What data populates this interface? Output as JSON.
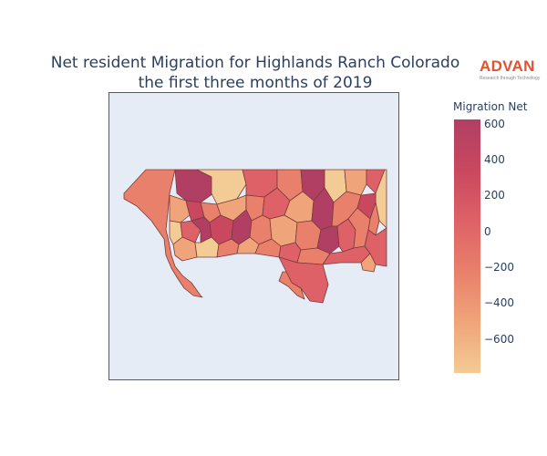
{
  "title": {
    "line1": "Net resident Migration for Highlands Ranch Colorado",
    "line2": "the first three months of 2019"
  },
  "logo": {
    "name": "ADVAN",
    "tagline": "Research through Technology"
  },
  "colorbar": {
    "title": "Migration Net",
    "min": -790,
    "max": 625,
    "ticks": [
      {
        "value": 600,
        "label": "600"
      },
      {
        "value": 400,
        "label": "400"
      },
      {
        "value": 200,
        "label": "200"
      },
      {
        "value": 0,
        "label": "0"
      },
      {
        "value": -200,
        "label": "−200"
      },
      {
        "value": -400,
        "label": "−400"
      },
      {
        "value": -600,
        "label": "−600"
      }
    ],
    "colors": [
      "#f3cb94",
      "#f0a479",
      "#e8806b",
      "#de6167",
      "#c9485f",
      "#b13f64"
    ]
  },
  "map": {
    "background": "#e5ecf6",
    "border_color": "#7a3b3b"
  }
}
